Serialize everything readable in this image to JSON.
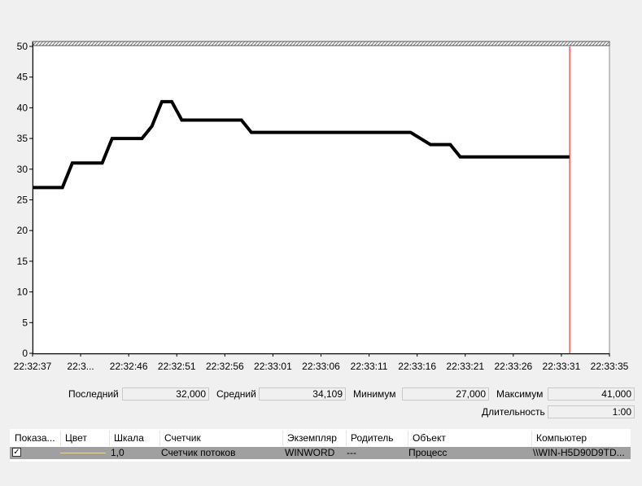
{
  "chart_data": {
    "type": "line",
    "ylim": [
      0,
      50
    ],
    "y_ticks": [
      "0",
      "5",
      "10",
      "15",
      "20",
      "25",
      "30",
      "35",
      "40",
      "45",
      "50"
    ],
    "x_tick_labels": [
      "22:32:37",
      "22:3...",
      "22:32:46",
      "22:32:51",
      "22:32:56",
      "22:33:01",
      "22:33:06",
      "22:33:11",
      "22:33:16",
      "22:33:21",
      "22:33:26",
      "22:33:31",
      "22:33:35"
    ],
    "series": [
      {
        "color": "#000000",
        "x": [
          "22:32:37",
          "22:32:40",
          "22:32:41",
          "22:32:44",
          "22:32:45",
          "22:32:48",
          "22:32:49",
          "22:32:50",
          "22:32:51",
          "22:32:52",
          "22:32:53",
          "22:32:58",
          "22:32:59",
          "22:33:14",
          "22:33:15",
          "22:33:16",
          "22:33:17",
          "22:33:18",
          "22:33:19",
          "22:33:20",
          "22:33:21",
          "22:33:22",
          "22:33:31"
        ],
        "values": [
          27,
          27,
          31,
          31,
          35,
          35,
          37,
          41,
          41,
          38,
          38,
          38,
          36,
          36,
          36,
          35,
          34,
          34,
          34,
          32,
          32,
          32,
          32
        ]
      }
    ],
    "current_time_marker": "22:33:31",
    "marker_color": "#ff0000",
    "grid": false,
    "legend": "table-below"
  },
  "stats": {
    "last_label": "Последний",
    "last_value": "32,000",
    "avg_label": "Средний",
    "avg_value": "34,109",
    "min_label": "Минимум",
    "min_value": "27,000",
    "max_label": "Максимум",
    "max_value": "41,000",
    "duration_label": "Длительность",
    "duration_value": "1:00"
  },
  "legend_table": {
    "headers": [
      "Показа...",
      "Цвет",
      "Шкала",
      "Счетчик",
      "Экземпляр",
      "Родитель",
      "Объект",
      "Компьютер"
    ],
    "rows": [
      {
        "show": true,
        "color": "#e8d8a0",
        "scale": "1,0",
        "counter": "Счетчик потоков",
        "instance": "WINWORD",
        "parent": "---",
        "object": "Процесс",
        "computer": "\\\\WIN-H5D90D9TD..."
      }
    ]
  }
}
